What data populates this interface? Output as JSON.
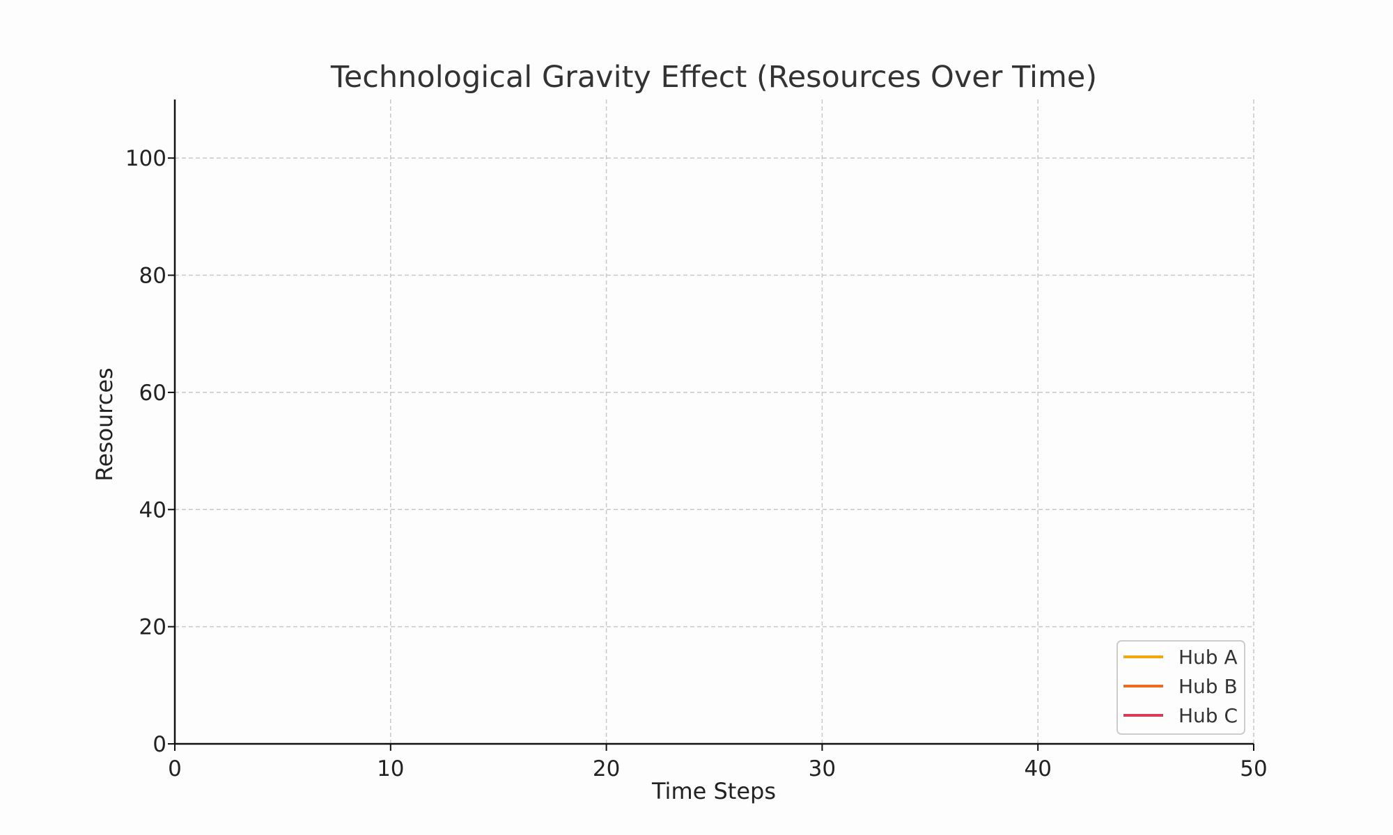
{
  "chart_data": {
    "type": "line",
    "title": "Technological Gravity Effect (Resources Over Time)",
    "xlabel": "Time Steps",
    "ylabel": "Resources",
    "xlim": [
      0,
      50
    ],
    "ylim": [
      0,
      110
    ],
    "xticks": [
      0,
      10,
      20,
      30,
      40,
      50
    ],
    "yticks": [
      0,
      20,
      40,
      60,
      80,
      100
    ],
    "grid": true,
    "legend_position": "lower-right",
    "series": [
      {
        "name": "Hub A",
        "color": "#f5a60f",
        "x": [],
        "y": []
      },
      {
        "name": "Hub B",
        "color": "#ee6a1f",
        "x": [],
        "y": []
      },
      {
        "name": "Hub C",
        "color": "#db3a55",
        "x": [],
        "y": []
      }
    ]
  },
  "colors": {
    "background": "#fdfdfd",
    "axis": "#111111",
    "grid": "#c8c8c8",
    "legend_border": "#cccccc"
  }
}
